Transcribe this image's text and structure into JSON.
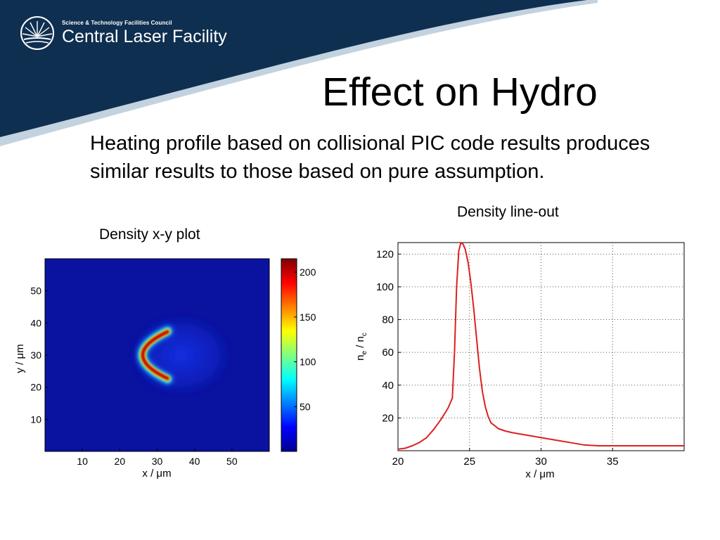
{
  "colors": {
    "header_navy": "#0f2f50",
    "header_light": "#c3d2df",
    "line_red": "#dd2020",
    "heatmap_background": "#0a12a0"
  },
  "header": {
    "logo_icon": "sunburst-logo-icon",
    "council": "Science & Technology Facilities Council",
    "facility": "Central Laser Facility"
  },
  "slide": {
    "title": "Effect on Hydro",
    "body": "Heating profile based on collisional PIC code results produces similar results to those based on pure assumption."
  },
  "captions": {
    "left": "Density x-y plot",
    "right": "Density line-out"
  },
  "chart_data": [
    {
      "type": "heatmap",
      "xlabel": "x / μm",
      "ylabel": "y / μm",
      "xlim": [
        0,
        60
      ],
      "ylim": [
        0,
        60
      ],
      "xticks": [
        10,
        20,
        30,
        40,
        50
      ],
      "yticks": [
        10,
        20,
        30,
        40,
        50
      ],
      "colorbar": {
        "min": 0,
        "max": 215,
        "ticks": [
          50,
          100,
          150,
          200
        ],
        "colormap": "jet"
      },
      "feature": {
        "shape": "crescent",
        "center": [
          26.5,
          30
        ],
        "peak": 210,
        "background": 3
      }
    },
    {
      "type": "line",
      "xlabel": "x / μm",
      "ylabel": "n_e / n_c",
      "xlim": [
        20,
        40
      ],
      "ylim": [
        0,
        127
      ],
      "xticks": [
        20,
        25,
        30,
        35
      ],
      "yticks": [
        20,
        40,
        60,
        80,
        100,
        120
      ],
      "grid": true,
      "series": [
        {
          "color": "#dd2020",
          "x": [
            20,
            20.5,
            21,
            21.5,
            22,
            22.5,
            23,
            23.5,
            23.8,
            23.95,
            24.1,
            24.25,
            24.4,
            24.55,
            24.7,
            24.9,
            25.1,
            25.3,
            25.5,
            25.7,
            25.9,
            26.1,
            26.3,
            26.5,
            26.8,
            27,
            27.5,
            28,
            29,
            30,
            31,
            32,
            33,
            34,
            35,
            36,
            37,
            38,
            40
          ],
          "y": [
            1,
            1.5,
            3,
            5,
            8,
            13,
            19,
            26,
            32,
            60,
            100,
            122,
            127,
            126,
            123,
            115,
            102,
            86,
            68,
            50,
            36,
            27,
            21,
            17,
            15,
            13.5,
            12,
            11,
            9.5,
            8,
            6.5,
            5,
            3.5,
            3,
            3,
            3,
            3,
            3,
            3
          ]
        }
      ]
    }
  ]
}
